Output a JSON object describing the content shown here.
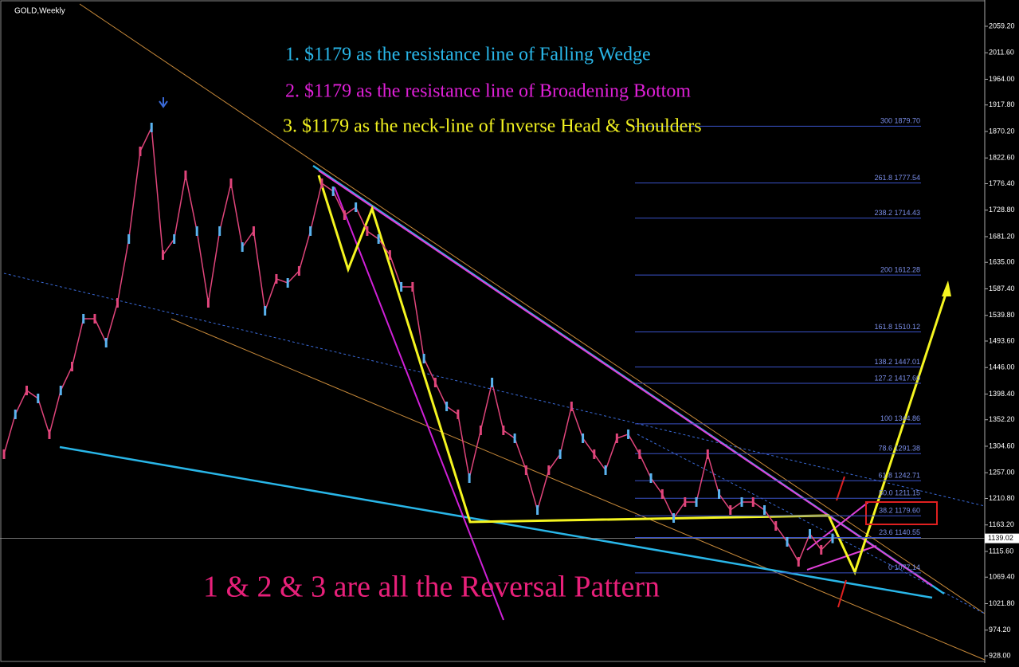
{
  "chart_data": {
    "type": "line",
    "title": "GOLD,Weekly",
    "color": "#e0457b",
    "categories": [
      null,
      null,
      null,
      null,
      null,
      null,
      null,
      null,
      null,
      null,
      null,
      null,
      null,
      null,
      null,
      null,
      null,
      null,
      null,
      null,
      null,
      null,
      null,
      null,
      null,
      null,
      null,
      null,
      null,
      null,
      null,
      null,
      null,
      null,
      null,
      null,
      null,
      null,
      null,
      null,
      null,
      null,
      null,
      null,
      null,
      null,
      null,
      null,
      null,
      null,
      null,
      null,
      null,
      null,
      null,
      null,
      null,
      null,
      null,
      null,
      null,
      null,
      null,
      null,
      null,
      null,
      null,
      null,
      null,
      null,
      null,
      null,
      null,
      null
    ],
    "values": [
      1290.3,
      1361.9,
      1404.8,
      1390.5,
      1326.1,
      1404.8,
      1447.8,
      1533.7,
      1533.7,
      1490.7,
      1562.3,
      1676.9,
      1834.4,
      1877.3,
      1648.2,
      1676.9,
      1791.4,
      1691.2,
      1562.3,
      1691.2,
      1777.1,
      1662.5,
      1691.2,
      1548.0,
      1605.3,
      1598.1,
      1619.6,
      1691.2,
      1777.1,
      1762.8,
      1719.8,
      1734.1,
      1691.2,
      1676.9,
      1648.2,
      1591.0,
      1591.0,
      1462.1,
      1419.1,
      1376.2,
      1361.9,
      1247.3,
      1333.2,
      1419.1,
      1333.2,
      1318.9,
      1261.6,
      1190.0,
      1261.6,
      1290.3,
      1376.2,
      1318.9,
      1290.3,
      1261.6,
      1318.9,
      1326.1,
      1290.3,
      1247.3,
      1218.7,
      1175.7,
      1204.4,
      1204.4,
      1290.3,
      1218.7,
      1190.0,
      1204.4,
      1204.4,
      1190.0,
      1161.4,
      1132.8,
      1097.0,
      1147.1,
      1118.5,
      1139.02
    ],
    "ylim": [
      915.1,
      2106.4
    ],
    "yticks": [
      {
        "value": 2059.2,
        "label": "2059.20"
      },
      {
        "value": 2011.6,
        "label": "2011.60"
      },
      {
        "value": 1964,
        "label": "1964.00"
      },
      {
        "value": 1917.8,
        "label": "1917.80"
      },
      {
        "value": 1870.2,
        "label": "1870.20"
      },
      {
        "value": 1822.6,
        "label": "1822.60"
      },
      {
        "value": 1776.4,
        "label": "1776.40"
      },
      {
        "value": 1728.8,
        "label": "1728.80"
      },
      {
        "value": 1681.2,
        "label": "1681.20"
      },
      {
        "value": 1635,
        "label": "1635.00"
      },
      {
        "value": 1587.4,
        "label": "1587.40"
      },
      {
        "value": 1539.8,
        "label": "1539.80"
      },
      {
        "value": 1493.6,
        "label": "1493.60"
      },
      {
        "value": 1446,
        "label": "1446.00"
      },
      {
        "value": 1398.4,
        "label": "1398.40"
      },
      {
        "value": 1352.2,
        "label": "1352.20"
      },
      {
        "value": 1304.6,
        "label": "1304.60"
      },
      {
        "value": 1257,
        "label": "1257.00"
      },
      {
        "value": 1210.8,
        "label": "1210.80"
      },
      {
        "value": 1163.2,
        "label": "1163.20"
      },
      {
        "value": 1115.6,
        "label": "1115.60"
      },
      {
        "value": 1069.4,
        "label": "1069.40"
      },
      {
        "value": 1021.8,
        "label": "1021.80"
      },
      {
        "value": 974.2,
        "label": "974.20"
      },
      {
        "value": 928,
        "label": "928.00"
      }
    ],
    "current_price": 1139.02,
    "fib_levels": [
      {
        "value": 1879.7,
        "label": "300 1879.70"
      },
      {
        "value": 1777.54,
        "label": "261.8 1777.54"
      },
      {
        "value": 1714.43,
        "label": "238.2 1714.43"
      },
      {
        "value": 1612.28,
        "label": "200 1612.28"
      },
      {
        "value": 1510.12,
        "label": "161.8 1510.12"
      },
      {
        "value": 1447.01,
        "label": "138.2 1447.01"
      },
      {
        "value": 1417.6,
        "label": "127.2 1417.60"
      },
      {
        "value": 1344.86,
        "label": "100 1344.86"
      },
      {
        "value": 1291.38,
        "label": "78.6 1291.38"
      },
      {
        "value": 1242.71,
        "label": "61.8 1242.71"
      },
      {
        "value": 1211.15,
        "label": "50.0 1211.15"
      },
      {
        "value": 1179.6,
        "label": "38.2 1179.60"
      },
      {
        "value": 1140.55,
        "label": "23.6 1140.55"
      },
      {
        "value": 1077.14,
        "label": "0 1077.14"
      }
    ],
    "annotations": [
      {
        "text": "1.    $1179 as the resistance line of Falling Wedge",
        "color": "#29b6e8"
      },
      {
        "text": "2.   $1179 as the resistance line of Broadening Bottom",
        "color": "#e020d8"
      },
      {
        "text": "3.   $1179 as the neck-line of Inverse Head & Shoulders",
        "color": "#f0f020"
      },
      {
        "text": "1 & 2 & 3   are all the Reversal Pattern",
        "color": "#e8207a"
      }
    ]
  }
}
